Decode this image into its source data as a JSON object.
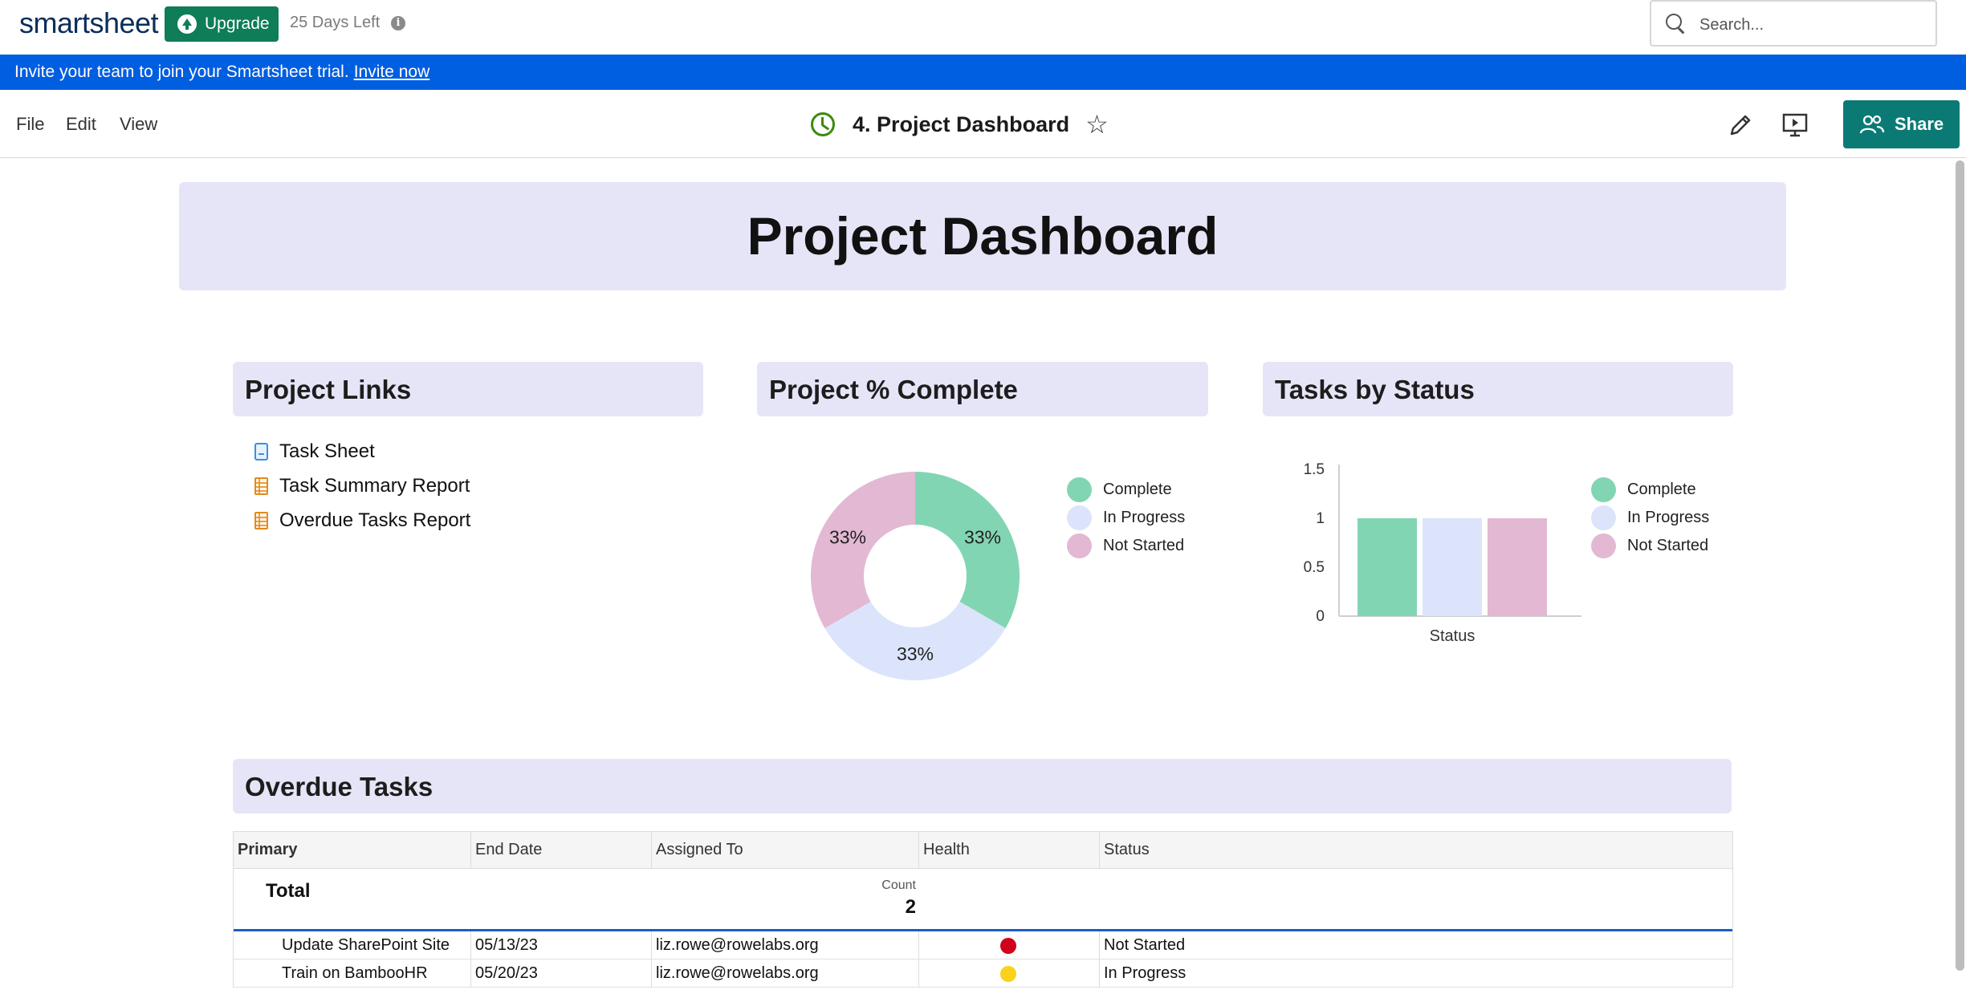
{
  "app": {
    "logo": "smartsheet",
    "upgrade_label": "Upgrade",
    "trial_days_left": "25 Days Left",
    "search_placeholder": "Search..."
  },
  "banner": {
    "text": "Invite your team to join your Smartsheet trial.",
    "link": "Invite now"
  },
  "toolbar": {
    "menu": [
      "File",
      "Edit",
      "View"
    ],
    "dashboard_title": "4. Project Dashboard",
    "share_label": "Share"
  },
  "dashboard": {
    "header_title": "Project Dashboard",
    "links_widget": {
      "title": "Project Links",
      "items": [
        {
          "label": "Task Sheet",
          "icon": "sheet-icon"
        },
        {
          "label": "Task Summary Report",
          "icon": "report-icon"
        },
        {
          "label": "Overdue Tasks Report",
          "icon": "report-icon"
        }
      ]
    },
    "percent_widget": {
      "title": "Project % Complete",
      "legend": [
        "Complete",
        "In Progress",
        "Not Started"
      ]
    },
    "status_widget": {
      "title": "Tasks by Status",
      "xlabel": "Status",
      "legend": [
        "Complete",
        "In Progress",
        "Not Started"
      ]
    },
    "overdue_widget": {
      "title": "Overdue Tasks",
      "columns": [
        "Primary",
        "End Date",
        "Assigned To",
        "Health",
        "Status"
      ],
      "total_label": "Total",
      "count_label": "Count",
      "count_value": "2",
      "rows": [
        {
          "primary": "Update SharePoint Site",
          "end_date": "05/13/23",
          "assigned_to": "liz.rowe@rowelabs.org",
          "health": "red",
          "status": "Not Started"
        },
        {
          "primary": "Train on BambooHR",
          "end_date": "05/20/23",
          "assigned_to": "liz.rowe@rowelabs.org",
          "health": "yellow",
          "status": "In Progress"
        }
      ]
    }
  },
  "colors": {
    "complete": "#82d5b3",
    "in_progress": "#dbe4fb",
    "not_started": "#e2b8d3",
    "health_red": "#d0021b",
    "health_yellow": "#f8d21c",
    "widget_header": "#e6e5f8",
    "banner": "#005ee0",
    "share": "#0b7a75",
    "upgrade": "#0e7d58"
  },
  "chart_data": [
    {
      "type": "pie",
      "title": "Project % Complete",
      "categories": [
        "Complete",
        "In Progress",
        "Not Started"
      ],
      "values": [
        33,
        33,
        33
      ],
      "labels": [
        "33%",
        "33%",
        "33%"
      ],
      "donut": true,
      "legend": "right"
    },
    {
      "type": "bar",
      "title": "Tasks by Status",
      "categories": [
        "Status"
      ],
      "series": [
        {
          "name": "Complete",
          "values": [
            1
          ]
        },
        {
          "name": "In Progress",
          "values": [
            1
          ]
        },
        {
          "name": "Not Started",
          "values": [
            1
          ]
        }
      ],
      "xlabel": "Status",
      "ylabel": "",
      "ylim": [
        0,
        1.5
      ],
      "yticks": [
        "0",
        "0.5",
        "1",
        "1.5"
      ],
      "grid": false,
      "legend": "right"
    }
  ]
}
